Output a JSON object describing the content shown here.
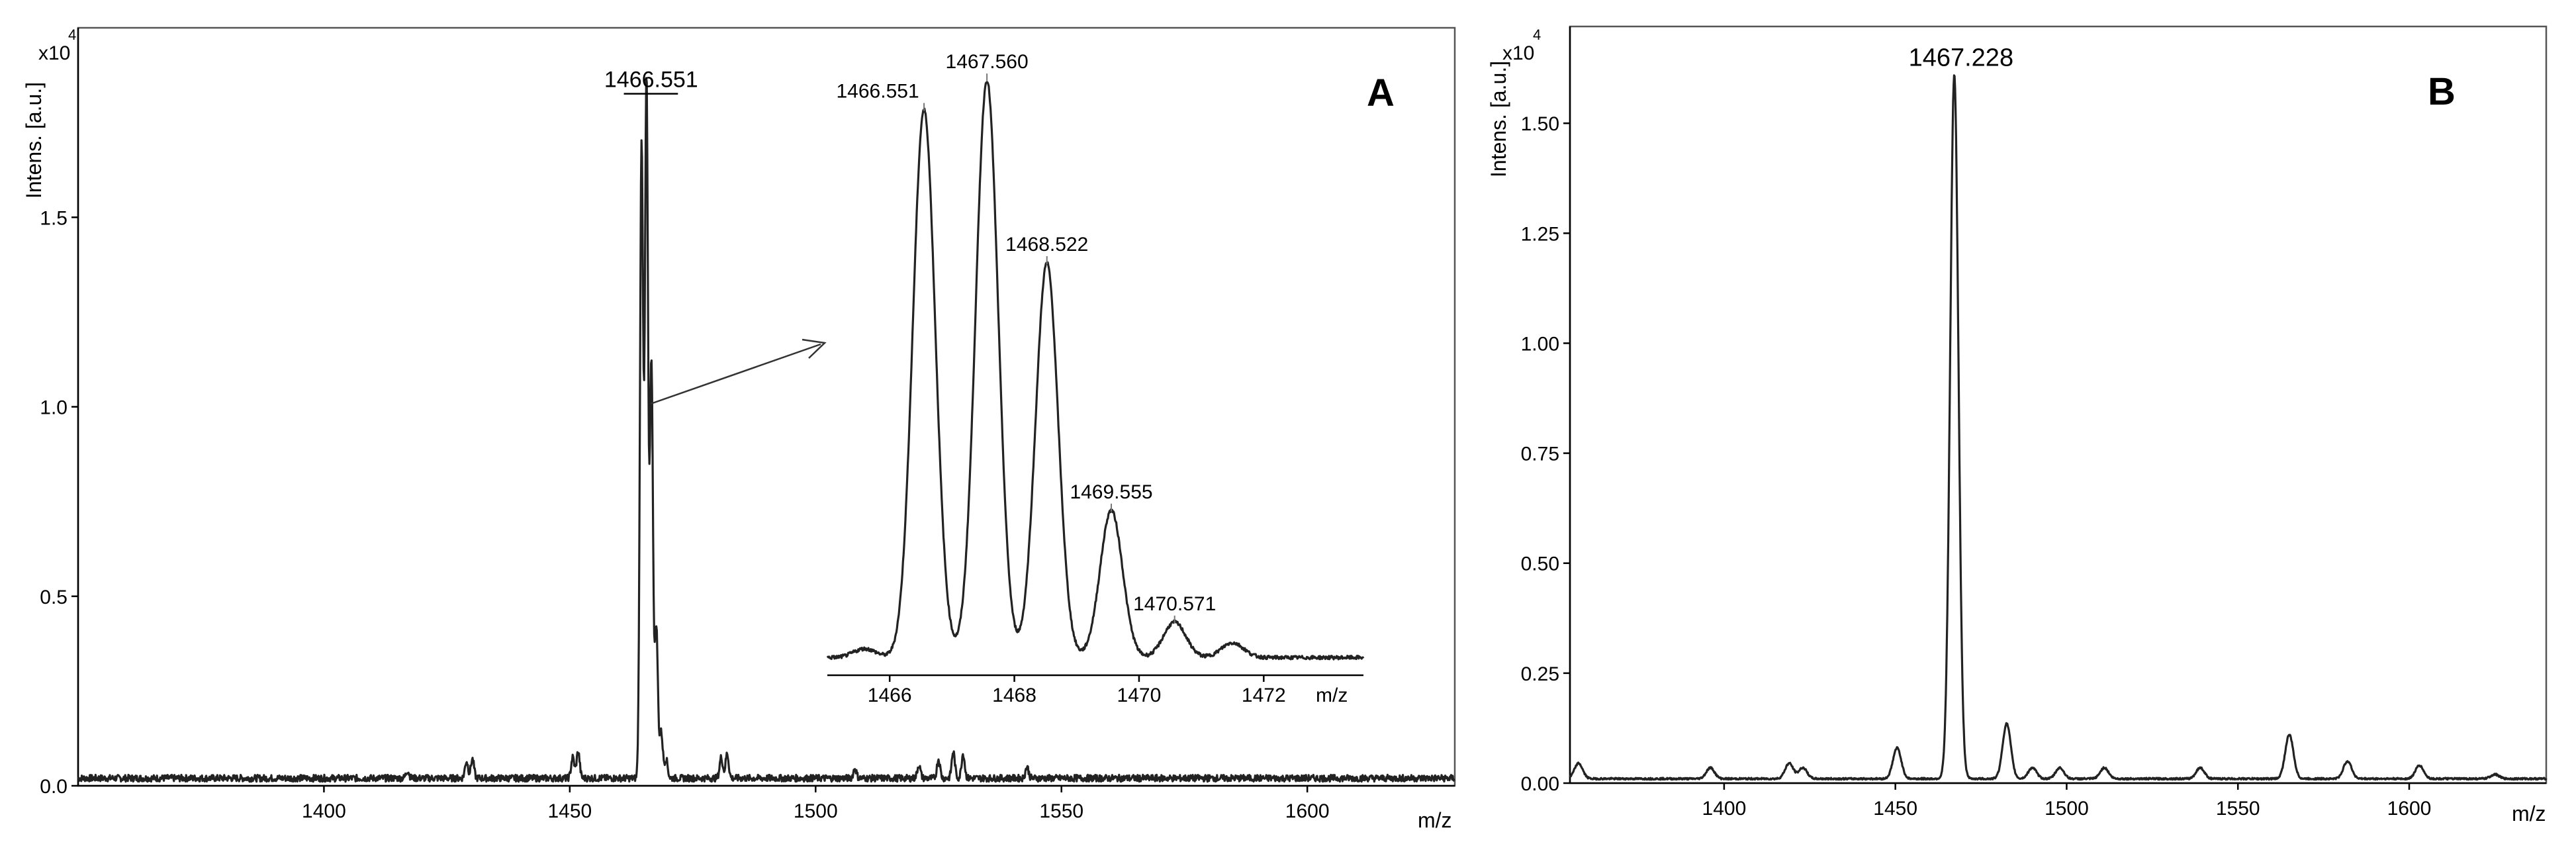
{
  "chart_data": [
    {
      "panel": "A",
      "type": "line",
      "ylabel": "Intens. [a.u.]",
      "y_multiplier": "x10",
      "y_exponent": "4",
      "xlabel": "m/z",
      "xlim": [
        1350,
        1630
      ],
      "ylim": [
        0,
        2.0
      ],
      "x_ticks": [
        1400,
        1450,
        1500,
        1550,
        1600
      ],
      "x_tick_labels": [
        "1400",
        "1450",
        "1500",
        "1550",
        "1600"
      ],
      "y_ticks": [
        0.0,
        0.5,
        1.0,
        1.5
      ],
      "y_tick_labels": [
        "0.0",
        "0.5",
        "1.0",
        "1.5"
      ],
      "peak_annotation": {
        "label": "1466.551",
        "x": 1466.551,
        "y": 1.84
      },
      "peaks": [
        {
          "x": 1417.0,
          "y": 0.02
        },
        {
          "x": 1429.0,
          "y": 0.045
        },
        {
          "x": 1430.2,
          "y": 0.05
        },
        {
          "x": 1450.6,
          "y": 0.055
        },
        {
          "x": 1451.7,
          "y": 0.07
        },
        {
          "x": 1464.6,
          "y": 1.68
        },
        {
          "x": 1465.6,
          "y": 1.84
        },
        {
          "x": 1466.6,
          "y": 1.1
        },
        {
          "x": 1467.6,
          "y": 0.4
        },
        {
          "x": 1468.6,
          "y": 0.12
        },
        {
          "x": 1469.6,
          "y": 0.05
        },
        {
          "x": 1480.8,
          "y": 0.055
        },
        {
          "x": 1482.0,
          "y": 0.065
        },
        {
          "x": 1508.0,
          "y": 0.025
        },
        {
          "x": 1521.0,
          "y": 0.035
        },
        {
          "x": 1525.0,
          "y": 0.05
        },
        {
          "x": 1528.0,
          "y": 0.07
        },
        {
          "x": 1530.0,
          "y": 0.065
        },
        {
          "x": 1543.0,
          "y": 0.03
        }
      ],
      "inset": {
        "xlabel": "m/z",
        "xlim": [
          1465.0,
          1473.6
        ],
        "x_ticks": [
          1466,
          1468,
          1470,
          1472
        ],
        "x_tick_labels": [
          "1466",
          "1468",
          "1470",
          "1472"
        ],
        "ylim": [
          0,
          1.0
        ],
        "peaks": [
          {
            "label": "1466.551",
            "x": 1466.551,
            "y": 0.93
          },
          {
            "label": "1467.560",
            "x": 1467.56,
            "y": 0.98
          },
          {
            "label": "1468.522",
            "x": 1468.522,
            "y": 0.67
          },
          {
            "label": "1469.555",
            "x": 1469.555,
            "y": 0.25
          },
          {
            "label": "1470.571",
            "x": 1470.571,
            "y": 0.06
          }
        ],
        "minor_peaks": [
          {
            "x": 1465.6,
            "y": 0.015
          },
          {
            "x": 1471.5,
            "y": 0.025
          }
        ]
      }
    },
    {
      "panel": "B",
      "type": "line",
      "ylabel": "Intens. [a.u.]",
      "y_multiplier": "x10",
      "y_exponent": "4",
      "xlabel": "m/z",
      "xlim": [
        1355,
        1640
      ],
      "ylim": [
        0,
        1.72
      ],
      "x_ticks": [
        1400,
        1450,
        1500,
        1550,
        1600
      ],
      "x_tick_labels": [
        "1400",
        "1450",
        "1500",
        "1550",
        "1600"
      ],
      "y_ticks": [
        0.0,
        0.25,
        0.5,
        0.75,
        1.0,
        1.25,
        1.5
      ],
      "y_tick_labels": [
        "0.00",
        "0.25",
        "0.50",
        "0.75",
        "1.00",
        "1.25",
        "1.50"
      ],
      "peak_annotation": {
        "label": "1467.228",
        "x": 1467.228,
        "y": 1.6
      },
      "peaks": [
        {
          "x": 1357.5,
          "y": 0.035
        },
        {
          "x": 1396.0,
          "y": 0.025
        },
        {
          "x": 1419.0,
          "y": 0.035
        },
        {
          "x": 1423.0,
          "y": 0.025
        },
        {
          "x": 1450.5,
          "y": 0.07
        },
        {
          "x": 1467.2,
          "y": 1.6
        },
        {
          "x": 1482.5,
          "y": 0.125
        },
        {
          "x": 1490.0,
          "y": 0.025
        },
        {
          "x": 1498.0,
          "y": 0.025
        },
        {
          "x": 1511.0,
          "y": 0.025
        },
        {
          "x": 1539.0,
          "y": 0.025
        },
        {
          "x": 1565.0,
          "y": 0.1
        },
        {
          "x": 1582.0,
          "y": 0.04
        },
        {
          "x": 1603.0,
          "y": 0.03
        },
        {
          "x": 1625.0,
          "y": 0.01
        }
      ]
    }
  ]
}
